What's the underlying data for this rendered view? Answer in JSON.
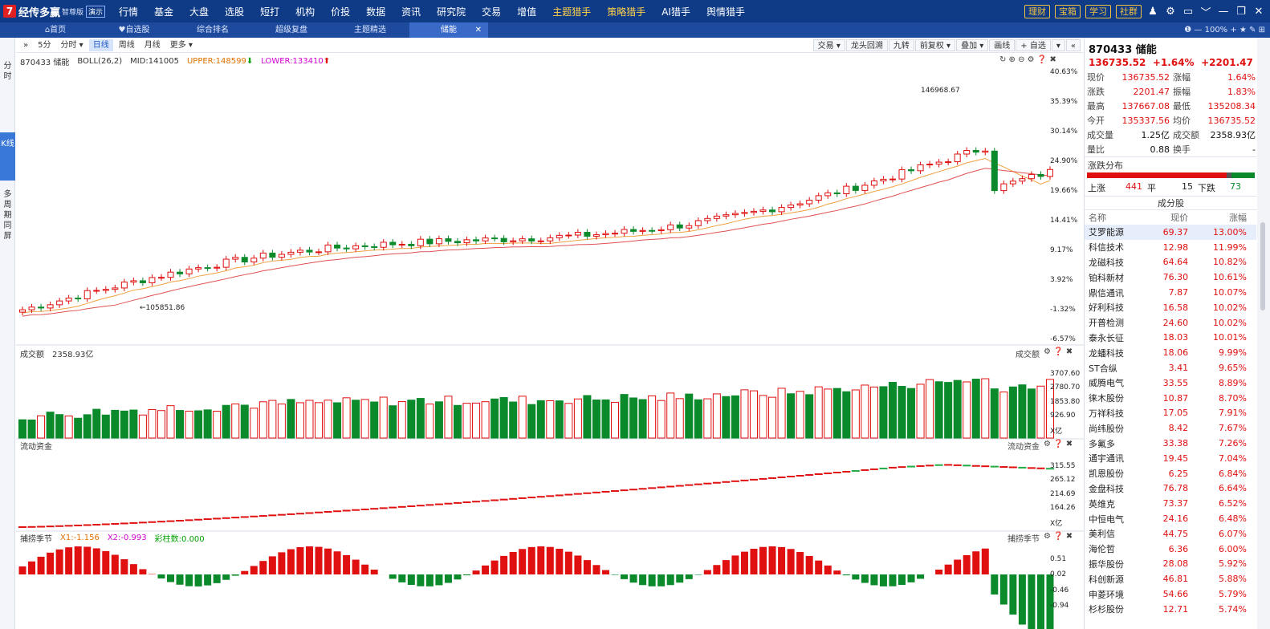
{
  "app": {
    "logo_mark": "7",
    "name": "经传多赢",
    "edition": "智尊版",
    "badge": "演示"
  },
  "nav": [
    {
      "label": "行情",
      "hot": false,
      "dot": false
    },
    {
      "label": "基金",
      "hot": false,
      "dot": false
    },
    {
      "label": "大盘",
      "hot": false,
      "dot": false
    },
    {
      "label": "选股",
      "hot": false,
      "dot": false
    },
    {
      "label": "短打",
      "hot": false,
      "dot": false
    },
    {
      "label": "机构",
      "hot": false,
      "dot": false
    },
    {
      "label": "价投",
      "hot": false,
      "dot": false
    },
    {
      "label": "数据",
      "hot": false,
      "dot": false
    },
    {
      "label": "资讯",
      "hot": false,
      "dot": false
    },
    {
      "label": "研究院",
      "hot": false,
      "dot": false
    },
    {
      "label": "交易",
      "hot": false,
      "dot": false
    },
    {
      "label": "增值",
      "hot": false,
      "dot": false
    },
    {
      "label": "主题猎手",
      "hot": true,
      "dot": false
    },
    {
      "label": "策略猎手",
      "hot": true,
      "dot": true
    },
    {
      "label": "AI猎手",
      "hot": false,
      "dot": false
    },
    {
      "label": "舆情猎手",
      "hot": false,
      "dot": false
    }
  ],
  "topright": {
    "buttons": [
      "理财",
      "宝箱",
      "学习",
      "社群"
    ],
    "icons": [
      "user-icon",
      "gear-icon",
      "window-icon",
      "chevron-down-icon",
      "minimize-icon",
      "restore-icon",
      "close-icon"
    ],
    "glyphs": [
      "♟",
      "⚙",
      "▭",
      "﹀",
      "—",
      "❐",
      "✕"
    ]
  },
  "tabs": [
    "首页",
    "自选股",
    "综合排名",
    "超级复盘",
    "主题精选",
    "储能"
  ],
  "tab_icons": [
    "⌂",
    "♥",
    "",
    "",
    "",
    ""
  ],
  "tab_active": 5,
  "tabbar_right": "❶ — 100% + ★ ✎ ⊞",
  "leftside": [
    "分时",
    "K线",
    "多周期同屏"
  ],
  "chart_toolbar": {
    "left": [
      "»",
      "5分",
      "分时 ▾",
      "日线",
      "周线",
      "月线",
      "更多 ▾"
    ],
    "active": 3,
    "right": [
      "交易 ▾",
      "龙头回溯",
      "九转",
      "前复权 ▾",
      "叠加 ▾",
      "画线",
      "+ 自选",
      "▾",
      "«"
    ]
  },
  "main_panel": {
    "code_name": "870433 储能",
    "indicator": "BOLL(26,2)",
    "mid": "MID:141005",
    "upper": "UPPER:148599",
    "lower": "LOWER:133410",
    "up_arrow": "⬆",
    "down_arrow": "⬇",
    "high_label": "146968.67",
    "low_label": "105851.86",
    "axis": [
      "40.63%",
      "35.39%",
      "30.14%",
      "24.90%",
      "19.66%",
      "14.41%",
      "9.17%",
      "3.92%",
      "-1.32%",
      "-6.57%"
    ],
    "icons": "↻ ⊕ ⊖ ⚙ ❓ ✖"
  },
  "volume_panel": {
    "title": "成交额",
    "value": "2358.93亿",
    "right_label": "成交额",
    "axis": [
      "3707.60",
      "2780.70",
      "1853.80",
      "926.90",
      "X亿"
    ]
  },
  "flow_panel": {
    "title": "流动资金",
    "right_label": "流动资金",
    "axis": [
      "315.55",
      "265.12",
      "214.69",
      "164.26",
      "X亿"
    ]
  },
  "osc_panel": {
    "title": "捕捞季节",
    "x1": "X1:-1.156",
    "x2": "X2:-0.993",
    "bars": "彩柱数:0.000",
    "right_label": "捕捞季节",
    "axis": [
      "0.51",
      "0.02",
      "-0.46",
      "-0.94"
    ]
  },
  "quote": {
    "code": "870433 储能",
    "price": "136735.52",
    "pct": "+1.64%",
    "chg": "+2201.47",
    "rows": [
      [
        "现价",
        "136735.52",
        "涨幅",
        "1.64%"
      ],
      [
        "涨跌",
        "2201.47",
        "振幅",
        "1.83%"
      ],
      [
        "最高",
        "137667.08",
        "最低",
        "135208.34"
      ],
      [
        "今开",
        "135337.56",
        "均价",
        "136735.52"
      ],
      [
        "成交量",
        "1.25亿",
        "成交额",
        "2358.93亿"
      ],
      [
        "量比",
        "0.88",
        "换手",
        "-"
      ]
    ]
  },
  "dist": {
    "title": "涨跌分布",
    "up_label": "上涨",
    "up": "441",
    "flat_label": "平",
    "flat": "15",
    "down_label": "下跌",
    "down": "73"
  },
  "constituents": {
    "title": "成分股",
    "headers": [
      "名称",
      "现价",
      "涨幅"
    ],
    "rows": [
      [
        "艾罗能源",
        "69.37",
        "13.00%"
      ],
      [
        "科信技术",
        "12.98",
        "11.99%"
      ],
      [
        "龙磁科技",
        "64.64",
        "10.82%"
      ],
      [
        "铂科新材",
        "76.30",
        "10.61%"
      ],
      [
        "鼎信通讯",
        "7.87",
        "10.07%"
      ],
      [
        "好利科技",
        "16.58",
        "10.02%"
      ],
      [
        "开普检测",
        "24.60",
        "10.02%"
      ],
      [
        "泰永长征",
        "18.03",
        "10.01%"
      ],
      [
        "龙蟠科技",
        "18.06",
        "9.99%"
      ],
      [
        "ST合纵",
        "3.41",
        "9.65%"
      ],
      [
        "威腾电气",
        "33.55",
        "8.89%"
      ],
      [
        "徕木股份",
        "10.87",
        "8.70%"
      ],
      [
        "万祥科技",
        "17.05",
        "7.91%"
      ],
      [
        "尚纬股份",
        "8.42",
        "7.67%"
      ],
      [
        "多氟多",
        "33.38",
        "7.26%"
      ],
      [
        "通宇通讯",
        "19.45",
        "7.04%"
      ],
      [
        "凯恩股份",
        "6.25",
        "6.84%"
      ],
      [
        "金盘科技",
        "76.78",
        "6.64%"
      ],
      [
        "英维克",
        "73.37",
        "6.52%"
      ],
      [
        "中恒电气",
        "24.16",
        "6.48%"
      ],
      [
        "美利信",
        "44.75",
        "6.07%"
      ],
      [
        "海伦哲",
        "6.36",
        "6.00%"
      ],
      [
        "振华股份",
        "28.08",
        "5.92%"
      ],
      [
        "科创新源",
        "46.81",
        "5.88%"
      ],
      [
        "申菱环境",
        "54.66",
        "5.79%"
      ],
      [
        "杉杉股份",
        "12.71",
        "5.74%"
      ]
    ]
  },
  "colors": {
    "up": "#e01010",
    "down": "#0a8a2a",
    "nav": "#0f3b86",
    "accent": "#3a78d8"
  }
}
